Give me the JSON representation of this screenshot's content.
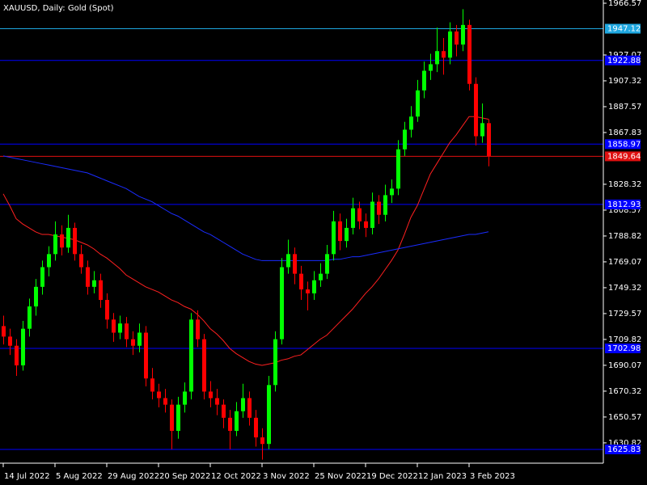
{
  "chart_data": {
    "type": "candlestick",
    "title": "XAUUSD, Daily:  Gold (Spot)",
    "up_color": "#00ff00",
    "down_color": "#ff0000",
    "ylim": [
      1615.94,
      1966.57
    ],
    "yticks": [
      1966.57,
      1927.07,
      1907.32,
      1887.57,
      1867.83,
      1828.32,
      1808.57,
      1788.82,
      1769.07,
      1749.32,
      1729.57,
      1709.82,
      1690.07,
      1670.32,
      1650.57,
      1630.82
    ],
    "xticks": [
      {
        "value": 0,
        "label": "14 Jul 2022"
      },
      {
        "value": 8,
        "label": "5 Aug 2022"
      },
      {
        "value": 16,
        "label": "29 Aug 2022"
      },
      {
        "value": 24,
        "label": "20 Sep 2022"
      },
      {
        "value": 32,
        "label": "12 Oct 2022"
      },
      {
        "value": 40,
        "label": "3 Nov 2022"
      },
      {
        "value": 48,
        "label": "25 Nov 2022"
      },
      {
        "value": 56,
        "label": "19 Dec 2022"
      },
      {
        "value": 64,
        "label": "12 Jan 2023"
      },
      {
        "value": 72,
        "label": "3 Feb 2023"
      }
    ],
    "candles": [
      [
        1720,
        1728,
        1706,
        1712
      ],
      [
        1712,
        1718,
        1698,
        1705
      ],
      [
        1705,
        1710,
        1682,
        1690
      ],
      [
        1690,
        1724,
        1686,
        1718
      ],
      [
        1718,
        1741,
        1712,
        1735
      ],
      [
        1735,
        1756,
        1728,
        1750
      ],
      [
        1750,
        1770,
        1744,
        1765
      ],
      [
        1765,
        1781,
        1758,
        1775
      ],
      [
        1775,
        1800,
        1770,
        1790
      ],
      [
        1790,
        1797,
        1774,
        1780
      ],
      [
        1780,
        1805,
        1776,
        1795
      ],
      [
        1795,
        1799,
        1770,
        1775
      ],
      [
        1775,
        1782,
        1760,
        1765
      ],
      [
        1765,
        1770,
        1744,
        1750
      ],
      [
        1750,
        1762,
        1745,
        1755
      ],
      [
        1755,
        1760,
        1734,
        1740
      ],
      [
        1740,
        1745,
        1718,
        1725
      ],
      [
        1725,
        1730,
        1708,
        1715
      ],
      [
        1715,
        1728,
        1710,
        1722
      ],
      [
        1722,
        1727,
        1704,
        1710
      ],
      [
        1710,
        1716,
        1698,
        1705
      ],
      [
        1705,
        1722,
        1700,
        1715
      ],
      [
        1715,
        1720,
        1674,
        1680
      ],
      [
        1680,
        1688,
        1664,
        1670
      ],
      [
        1670,
        1676,
        1658,
        1665
      ],
      [
        1665,
        1672,
        1654,
        1660
      ],
      [
        1660,
        1664,
        1626,
        1640
      ],
      [
        1640,
        1666,
        1634,
        1660
      ],
      [
        1660,
        1677,
        1654,
        1670
      ],
      [
        1670,
        1730,
        1664,
        1725
      ],
      [
        1725,
        1732,
        1704,
        1710
      ],
      [
        1710,
        1714,
        1664,
        1670
      ],
      [
        1670,
        1678,
        1658,
        1665
      ],
      [
        1665,
        1672,
        1652,
        1660
      ],
      [
        1660,
        1664,
        1642,
        1650
      ],
      [
        1650,
        1656,
        1626,
        1640
      ],
      [
        1640,
        1662,
        1636,
        1655
      ],
      [
        1655,
        1676,
        1650,
        1665
      ],
      [
        1665,
        1670,
        1644,
        1650
      ],
      [
        1650,
        1656,
        1628,
        1635
      ],
      [
        1635,
        1642,
        1618,
        1630
      ],
      [
        1630,
        1682,
        1626,
        1675
      ],
      [
        1675,
        1716,
        1670,
        1710
      ],
      [
        1710,
        1772,
        1706,
        1765
      ],
      [
        1765,
        1786,
        1760,
        1775
      ],
      [
        1775,
        1780,
        1752,
        1760
      ],
      [
        1760,
        1766,
        1740,
        1748
      ],
      [
        1748,
        1754,
        1732,
        1745
      ],
      [
        1745,
        1762,
        1740,
        1755
      ],
      [
        1755,
        1768,
        1750,
        1760
      ],
      [
        1760,
        1782,
        1756,
        1775
      ],
      [
        1775,
        1808,
        1770,
        1800
      ],
      [
        1800,
        1806,
        1778,
        1785
      ],
      [
        1785,
        1802,
        1780,
        1795
      ],
      [
        1795,
        1818,
        1790,
        1810
      ],
      [
        1810,
        1815,
        1794,
        1800
      ],
      [
        1800,
        1806,
        1788,
        1795
      ],
      [
        1795,
        1822,
        1790,
        1815
      ],
      [
        1815,
        1820,
        1798,
        1805
      ],
      [
        1805,
        1828,
        1800,
        1820
      ],
      [
        1820,
        1832,
        1814,
        1825
      ],
      [
        1825,
        1862,
        1820,
        1855
      ],
      [
        1855,
        1876,
        1850,
        1870
      ],
      [
        1870,
        1888,
        1864,
        1880
      ],
      [
        1880,
        1908,
        1876,
        1900
      ],
      [
        1900,
        1922,
        1894,
        1915
      ],
      [
        1915,
        1928,
        1908,
        1920
      ],
      [
        1920,
        1948,
        1914,
        1930
      ],
      [
        1930,
        1940,
        1912,
        1925
      ],
      [
        1925,
        1952,
        1920,
        1945
      ],
      [
        1945,
        1950,
        1926,
        1935
      ],
      [
        1935,
        1962,
        1930,
        1950
      ],
      [
        1950,
        1954,
        1900,
        1905
      ],
      [
        1905,
        1910,
        1858,
        1865
      ],
      [
        1865,
        1890,
        1860,
        1875
      ],
      [
        1875,
        1878,
        1842,
        1849.64
      ]
    ],
    "series": [
      {
        "color": "#ff2020",
        "values": [
          1821,
          1812,
          1802,
          1798,
          1795,
          1792,
          1790,
          1790,
          1789,
          1788,
          1787,
          1786,
          1784,
          1782,
          1779,
          1775,
          1772,
          1768,
          1764,
          1759,
          1756,
          1753,
          1750,
          1748,
          1746,
          1743,
          1740,
          1738,
          1735,
          1733,
          1729,
          1724,
          1718,
          1714,
          1709,
          1703,
          1699,
          1696,
          1693,
          1691,
          1690,
          1691,
          1692,
          1694,
          1695,
          1697,
          1698,
          1702,
          1706,
          1710,
          1713,
          1718,
          1723,
          1728,
          1733,
          1739,
          1745,
          1750,
          1756,
          1763,
          1770,
          1778,
          1790,
          1803,
          1812,
          1824,
          1836,
          1844,
          1852,
          1860,
          1866,
          1873,
          1880,
          1880,
          1879,
          1878
        ]
      },
      {
        "color": "#1a2cff",
        "values": [
          1850,
          1849,
          1848,
          1847,
          1846,
          1845,
          1844,
          1843,
          1842,
          1841,
          1840,
          1839,
          1838,
          1837,
          1835,
          1833,
          1831,
          1829,
          1827,
          1825,
          1822,
          1819,
          1817,
          1815,
          1812,
          1809,
          1806,
          1804,
          1801,
          1798,
          1795,
          1792,
          1790,
          1787,
          1784,
          1781,
          1778,
          1775,
          1773,
          1771,
          1770,
          1770,
          1770,
          1770,
          1770,
          1770,
          1770,
          1770,
          1770,
          1770,
          1770,
          1771,
          1771,
          1772,
          1773,
          1773,
          1774,
          1775,
          1776,
          1777,
          1778,
          1779,
          1780,
          1781,
          1782,
          1783,
          1784,
          1785,
          1786,
          1787,
          1788,
          1789,
          1790,
          1790,
          1791,
          1792
        ]
      }
    ],
    "levels": [
      {
        "value": 1947.12,
        "color": "#1ea7e0"
      },
      {
        "value": 1922.88,
        "color": "#0000ff"
      },
      {
        "value": 1858.97,
        "color": "#0000ff"
      },
      {
        "value": 1849.64,
        "color": "#e01010"
      },
      {
        "value": 1812.93,
        "color": "#0000ff"
      },
      {
        "value": 1702.98,
        "color": "#0000ff"
      },
      {
        "value": 1625.83,
        "color": "#0000ff"
      }
    ]
  }
}
